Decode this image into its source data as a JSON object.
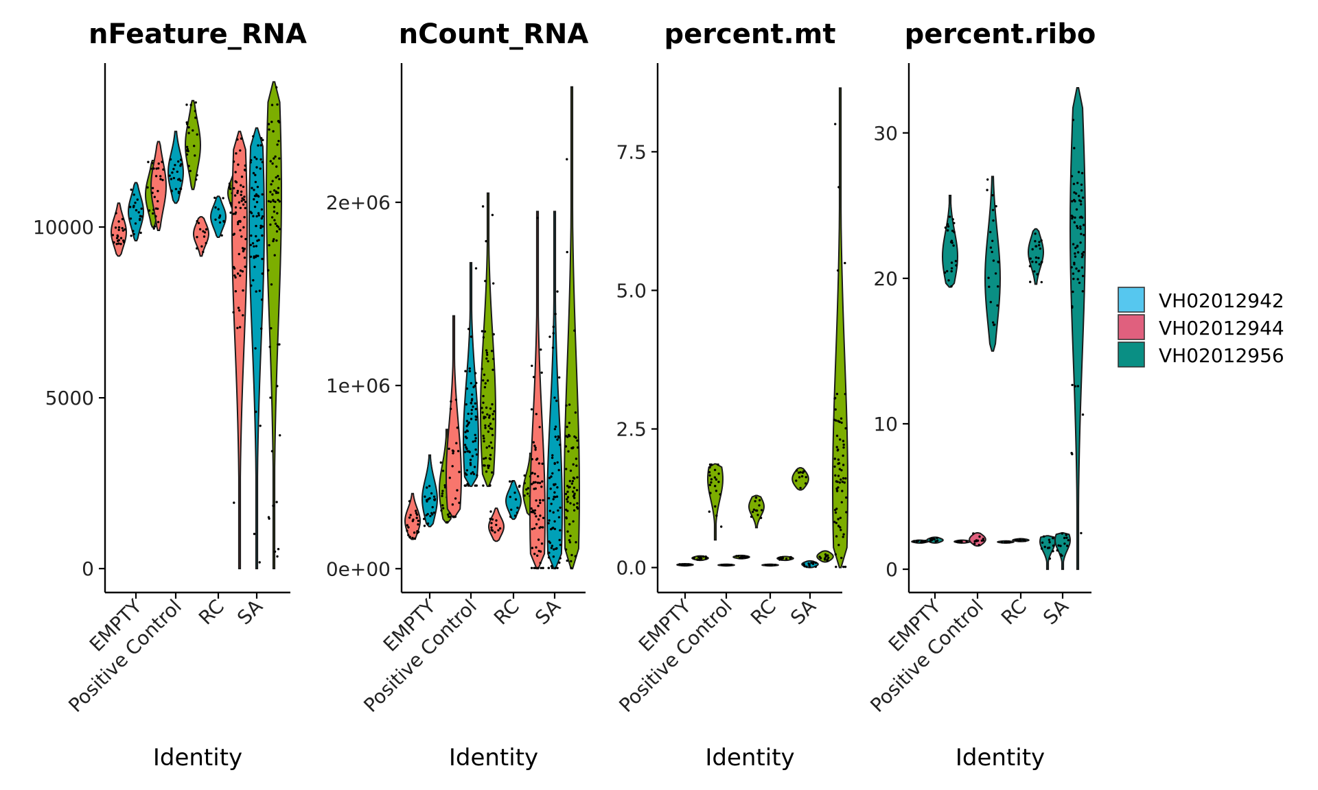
{
  "colors": {
    "legend_fills": [
      "#56c7ef",
      "#e0607e",
      "#0a8f84"
    ],
    "violin_fills": [
      "#f8766d",
      "#00a0b8",
      "#7cae00"
    ],
    "ribo_fill": "#0a8f84",
    "outline": "#1a1a1a",
    "point": "#000000"
  },
  "legend": {
    "placement": "right",
    "items": [
      {
        "label": "VH02012942",
        "color": "#56c7ef"
      },
      {
        "label": "VH02012944",
        "color": "#e0607e"
      },
      {
        "label": "VH02012956",
        "color": "#0a8f84"
      }
    ]
  },
  "chart_data": [
    {
      "type": "violin",
      "title": "nFeature_RNA",
      "xlabel": "Identity",
      "ylabel": "",
      "categories": [
        "EMPTY",
        "Positive Control",
        "RC",
        "SA"
      ],
      "yticks": [
        0,
        5000,
        10000
      ],
      "ytick_labels": [
        "0",
        "5000",
        "10000"
      ],
      "ylim": [
        -700,
        14800
      ],
      "violins": [
        {
          "category": "EMPTY",
          "offset": -1,
          "color": "#f8766d",
          "min": 9150,
          "max": 10700,
          "median": 9850
        },
        {
          "category": "EMPTY",
          "offset": 0,
          "color": "#00a0b8",
          "min": 9600,
          "max": 11300,
          "median": 10450
        },
        {
          "category": "EMPTY",
          "offset": 1,
          "color": "#7cae00",
          "min": 10000,
          "max": 11950,
          "median": 10950
        },
        {
          "category": "Positive Control",
          "offset": -1,
          "color": "#f8766d",
          "min": 9900,
          "max": 12500,
          "median": 11200
        },
        {
          "category": "Positive Control",
          "offset": 0,
          "color": "#00a0b8",
          "min": 10700,
          "max": 12800,
          "median": 11600
        },
        {
          "category": "Positive Control",
          "offset": 1,
          "color": "#7cae00",
          "min": 11100,
          "max": 13700,
          "median": 12400
        },
        {
          "category": "RC",
          "offset": -1,
          "color": "#f8766d",
          "min": 9150,
          "max": 10300,
          "median": 9800
        },
        {
          "category": "RC",
          "offset": 0,
          "color": "#00a0b8",
          "min": 9700,
          "max": 10900,
          "median": 10300
        },
        {
          "category": "RC",
          "offset": 1,
          "color": "#7cae00",
          "min": 10400,
          "max": 11700,
          "median": 11000
        },
        {
          "category": "SA",
          "offset": -1,
          "color": "#f8766d",
          "min": 0,
          "max": 12800,
          "median": 10000
        },
        {
          "category": "SA",
          "offset": 0,
          "color": "#00a0b8",
          "min": 0,
          "max": 12900,
          "median": 10150
        },
        {
          "category": "SA",
          "offset": 1,
          "color": "#7cae00",
          "min": 0,
          "max": 14250,
          "median": 11000
        }
      ]
    },
    {
      "type": "violin",
      "title": "nCount_RNA",
      "xlabel": "Identity",
      "ylabel": "",
      "categories": [
        "EMPTY",
        "Positive Control",
        "RC",
        "SA"
      ],
      "yticks": [
        0,
        1000000,
        2000000
      ],
      "ytick_labels": [
        "0e+00",
        "1e+06",
        "2e+06"
      ],
      "ylim": [
        -130000,
        2760000
      ],
      "violins": [
        {
          "category": "EMPTY",
          "offset": -1,
          "color": "#f8766d",
          "min": 160000,
          "max": 410000,
          "median": 260000
        },
        {
          "category": "EMPTY",
          "offset": 0,
          "color": "#00a0b8",
          "min": 230000,
          "max": 620000,
          "median": 380000
        },
        {
          "category": "EMPTY",
          "offset": 1,
          "color": "#7cae00",
          "min": 250000,
          "max": 760000,
          "median": 430000
        },
        {
          "category": "Positive Control",
          "offset": -1,
          "color": "#f8766d",
          "min": 280000,
          "max": 1380000,
          "median": 500000
        },
        {
          "category": "Positive Control",
          "offset": 0,
          "color": "#00a0b8",
          "min": 450000,
          "max": 1670000,
          "median": 700000
        },
        {
          "category": "Positive Control",
          "offset": 1,
          "color": "#7cae00",
          "min": 450000,
          "max": 2050000,
          "median": 850000
        },
        {
          "category": "RC",
          "offset": -1,
          "color": "#f8766d",
          "min": 150000,
          "max": 330000,
          "median": 230000
        },
        {
          "category": "RC",
          "offset": 0,
          "color": "#00a0b8",
          "min": 270000,
          "max": 480000,
          "median": 370000
        },
        {
          "category": "RC",
          "offset": 1,
          "color": "#7cae00",
          "min": 290000,
          "max": 630000,
          "median": 420000
        },
        {
          "category": "SA",
          "offset": -1,
          "color": "#f8766d",
          "min": 0,
          "max": 1950000,
          "median": 290000
        },
        {
          "category": "SA",
          "offset": 0,
          "color": "#00a0b8",
          "min": 0,
          "max": 1950000,
          "median": 320000
        },
        {
          "category": "SA",
          "offset": 1,
          "color": "#7cae00",
          "min": 0,
          "max": 2630000,
          "median": 420000
        }
      ]
    },
    {
      "type": "violin",
      "title": "percent.mt",
      "xlabel": "Identity",
      "ylabel": "",
      "categories": [
        "EMPTY",
        "Positive Control",
        "RC",
        "SA"
      ],
      "yticks": [
        0,
        2.5,
        5,
        7.5
      ],
      "ytick_labels": [
        "0.0",
        "2.5",
        "5.0",
        "7.5"
      ],
      "ylim": [
        -0.45,
        9.1
      ],
      "violins": [
        {
          "category": "EMPTY",
          "offset": 0,
          "color": "#00a0b8",
          "min": 0.03,
          "max": 0.07,
          "median": 0.05
        },
        {
          "category": "EMPTY",
          "offset": 1,
          "color": "#7cae00",
          "min": 0.13,
          "max": 0.21,
          "median": 0.17
        },
        {
          "category": "EMPTY",
          "offset": 2,
          "color": "#7cae00",
          "min": 0.5,
          "max": 1.87,
          "median": 1.6
        },
        {
          "category": "Positive Control",
          "offset": 0,
          "color": "#00a0b8",
          "min": 0.03,
          "max": 0.06,
          "median": 0.05
        },
        {
          "category": "Positive Control",
          "offset": 1,
          "color": "#7cae00",
          "min": 0.16,
          "max": 0.22,
          "median": 0.19
        },
        {
          "category": "Positive Control",
          "offset": 2,
          "color": "#7cae00",
          "min": 0.72,
          "max": 1.3,
          "median": 1.1
        },
        {
          "category": "RC",
          "offset": 0,
          "color": "#00a0b8",
          "min": 0.03,
          "max": 0.06,
          "median": 0.05
        },
        {
          "category": "RC",
          "offset": 1,
          "color": "#7cae00",
          "min": 0.13,
          "max": 0.2,
          "median": 0.17
        },
        {
          "category": "RC",
          "offset": 2,
          "color": "#7cae00",
          "min": 1.4,
          "max": 1.8,
          "median": 1.65
        },
        {
          "category": "SA",
          "offset": 0,
          "color": "#00a0b8",
          "min": 0.0,
          "max": 0.12,
          "median": 0.05
        },
        {
          "category": "SA",
          "offset": 1,
          "color": "#7cae00",
          "min": 0.1,
          "max": 0.3,
          "median": 0.2
        },
        {
          "category": "SA",
          "offset": 2,
          "color": "#7cae00",
          "min": 0.0,
          "max": 8.65,
          "median": 1.45
        }
      ]
    },
    {
      "type": "violin",
      "title": "percent.ribo",
      "xlabel": "Identity",
      "ylabel": "",
      "categories": [
        "EMPTY",
        "Positive Control",
        "RC",
        "SA"
      ],
      "yticks": [
        0,
        10,
        20,
        30
      ],
      "ytick_labels": [
        "0",
        "10",
        "20",
        "30"
      ],
      "ylim": [
        -1.6,
        34.8
      ],
      "violins": [
        {
          "category": "EMPTY",
          "offset": -1,
          "color": "#0a8f84",
          "min": 1.8,
          "max": 2.0,
          "median": 1.9
        },
        {
          "category": "EMPTY",
          "offset": 0,
          "color": "#0a8f84",
          "min": 1.8,
          "max": 2.2,
          "median": 2.0
        },
        {
          "category": "EMPTY",
          "offset": 1,
          "color": "#0a8f84",
          "min": 19.4,
          "max": 25.7,
          "median": 21.5
        },
        {
          "category": "Positive Control",
          "offset": -1,
          "color": "#e0607e",
          "min": 1.8,
          "max": 2.0,
          "median": 1.9
        },
        {
          "category": "Positive Control",
          "offset": 0,
          "color": "#e0607e",
          "min": 1.6,
          "max": 2.5,
          "median": 2.0
        },
        {
          "category": "Positive Control",
          "offset": 1,
          "color": "#0a8f84",
          "min": 15.0,
          "max": 27.0,
          "median": 20.0
        },
        {
          "category": "RC",
          "offset": -1,
          "color": "#0a8f84",
          "min": 1.8,
          "max": 1.95,
          "median": 1.85
        },
        {
          "category": "RC",
          "offset": 0,
          "color": "#0a8f84",
          "min": 1.9,
          "max": 2.1,
          "median": 2.0
        },
        {
          "category": "RC",
          "offset": 1,
          "color": "#0a8f84",
          "min": 19.6,
          "max": 23.4,
          "median": 21.8
        },
        {
          "category": "SA",
          "offset": -1,
          "color": "#0a8f84",
          "min": 0.0,
          "max": 2.3,
          "median": 1.9
        },
        {
          "category": "SA",
          "offset": 0,
          "color": "#0a8f84",
          "min": 0.0,
          "max": 2.5,
          "median": 2.0
        },
        {
          "category": "SA",
          "offset": 1,
          "color": "#0a8f84",
          "min": 0.0,
          "max": 33.1,
          "median": 23.5
        }
      ]
    }
  ]
}
